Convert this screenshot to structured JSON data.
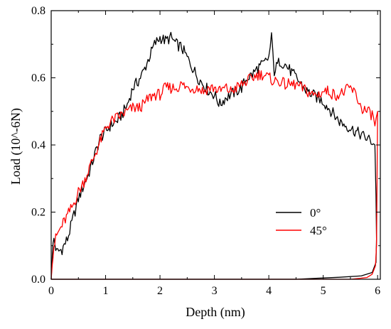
{
  "chart_data": {
    "type": "line",
    "xlabel": "Depth  (nm)",
    "ylabel": "Load  (10^-6N)",
    "xlim": [
      0,
      6.05
    ],
    "ylim": [
      0,
      0.8
    ],
    "x_ticks": [
      "0",
      "1",
      "2",
      "3",
      "4",
      "5",
      "6"
    ],
    "y_ticks": [
      "0.0",
      "0.2",
      "0.4",
      "0.6",
      "0.8"
    ],
    "legend_position": "lower-right",
    "series": [
      {
        "name": "0°",
        "color": "#000000",
        "loading": [
          [
            0.0,
            0.0
          ],
          [
            0.02,
            0.08
          ],
          [
            0.05,
            0.12
          ],
          [
            0.1,
            0.08
          ],
          [
            0.2,
            0.09
          ],
          [
            0.3,
            0.12
          ],
          [
            0.4,
            0.18
          ],
          [
            0.5,
            0.24
          ],
          [
            0.6,
            0.28
          ],
          [
            0.7,
            0.32
          ],
          [
            0.8,
            0.37
          ],
          [
            0.9,
            0.42
          ],
          [
            1.0,
            0.44
          ],
          [
            1.1,
            0.46
          ],
          [
            1.2,
            0.47
          ],
          [
            1.3,
            0.49
          ],
          [
            1.4,
            0.52
          ],
          [
            1.5,
            0.57
          ],
          [
            1.6,
            0.59
          ],
          [
            1.7,
            0.62
          ],
          [
            1.8,
            0.66
          ],
          [
            1.9,
            0.7
          ],
          [
            2.0,
            0.72
          ],
          [
            2.1,
            0.71
          ],
          [
            2.2,
            0.72
          ],
          [
            2.3,
            0.7
          ],
          [
            2.4,
            0.69
          ],
          [
            2.5,
            0.66
          ],
          [
            2.6,
            0.63
          ],
          [
            2.7,
            0.6
          ],
          [
            2.8,
            0.58
          ],
          [
            2.9,
            0.56
          ],
          [
            3.0,
            0.55
          ],
          [
            3.1,
            0.52
          ],
          [
            3.2,
            0.54
          ],
          [
            3.3,
            0.55
          ],
          [
            3.4,
            0.56
          ],
          [
            3.5,
            0.57
          ],
          [
            3.6,
            0.6
          ],
          [
            3.7,
            0.61
          ],
          [
            3.8,
            0.63
          ],
          [
            3.9,
            0.64
          ],
          [
            4.0,
            0.66
          ],
          [
            4.05,
            0.72
          ],
          [
            4.1,
            0.62
          ],
          [
            4.2,
            0.65
          ],
          [
            4.3,
            0.64
          ],
          [
            4.4,
            0.62
          ],
          [
            4.5,
            0.6
          ],
          [
            4.6,
            0.58
          ],
          [
            4.7,
            0.56
          ],
          [
            4.8,
            0.55
          ],
          [
            4.9,
            0.54
          ],
          [
            5.0,
            0.53
          ],
          [
            5.1,
            0.51
          ],
          [
            5.2,
            0.49
          ],
          [
            5.3,
            0.47
          ],
          [
            5.4,
            0.46
          ],
          [
            5.5,
            0.45
          ],
          [
            5.6,
            0.44
          ],
          [
            5.7,
            0.43
          ],
          [
            5.8,
            0.42
          ],
          [
            5.9,
            0.41
          ],
          [
            5.95,
            0.4
          ]
        ],
        "unloading": [
          [
            5.95,
            0.4
          ],
          [
            5.97,
            0.25
          ],
          [
            5.98,
            0.12
          ],
          [
            5.97,
            0.05
          ],
          [
            5.9,
            0.02
          ],
          [
            5.7,
            0.01
          ],
          [
            5.3,
            0.006
          ],
          [
            4.9,
            0.003
          ],
          [
            4.5,
            0.0
          ],
          [
            3.0,
            0.0
          ],
          [
            0.0,
            0.0
          ]
        ]
      },
      {
        "name": "45°",
        "color": "#ff0000",
        "loading": [
          [
            0.0,
            0.0
          ],
          [
            0.02,
            0.06
          ],
          [
            0.05,
            0.1
          ],
          [
            0.1,
            0.13
          ],
          [
            0.2,
            0.16
          ],
          [
            0.3,
            0.19
          ],
          [
            0.4,
            0.22
          ],
          [
            0.5,
            0.26
          ],
          [
            0.6,
            0.29
          ],
          [
            0.7,
            0.33
          ],
          [
            0.8,
            0.37
          ],
          [
            0.9,
            0.41
          ],
          [
            1.0,
            0.45
          ],
          [
            1.1,
            0.47
          ],
          [
            1.2,
            0.48
          ],
          [
            1.3,
            0.49
          ],
          [
            1.4,
            0.5
          ],
          [
            1.5,
            0.51
          ],
          [
            1.6,
            0.51
          ],
          [
            1.7,
            0.52
          ],
          [
            1.8,
            0.54
          ],
          [
            1.9,
            0.55
          ],
          [
            2.0,
            0.55
          ],
          [
            2.1,
            0.57
          ],
          [
            2.2,
            0.57
          ],
          [
            2.3,
            0.57
          ],
          [
            2.4,
            0.58
          ],
          [
            2.5,
            0.57
          ],
          [
            2.6,
            0.57
          ],
          [
            2.7,
            0.57
          ],
          [
            2.8,
            0.56
          ],
          [
            2.9,
            0.57
          ],
          [
            3.0,
            0.57
          ],
          [
            3.1,
            0.56
          ],
          [
            3.2,
            0.57
          ],
          [
            3.3,
            0.56
          ],
          [
            3.4,
            0.57
          ],
          [
            3.5,
            0.58
          ],
          [
            3.6,
            0.59
          ],
          [
            3.7,
            0.6
          ],
          [
            3.8,
            0.61
          ],
          [
            3.9,
            0.61
          ],
          [
            4.0,
            0.6
          ],
          [
            4.1,
            0.59
          ],
          [
            4.2,
            0.59
          ],
          [
            4.3,
            0.58
          ],
          [
            4.4,
            0.58
          ],
          [
            4.5,
            0.58
          ],
          [
            4.6,
            0.57
          ],
          [
            4.7,
            0.56
          ],
          [
            4.8,
            0.55
          ],
          [
            4.9,
            0.55
          ],
          [
            5.0,
            0.56
          ],
          [
            5.1,
            0.56
          ],
          [
            5.2,
            0.55
          ],
          [
            5.3,
            0.55
          ],
          [
            5.4,
            0.56
          ],
          [
            5.5,
            0.57
          ],
          [
            5.6,
            0.55
          ],
          [
            5.7,
            0.51
          ],
          [
            5.8,
            0.5
          ],
          [
            5.9,
            0.49
          ],
          [
            5.95,
            0.46
          ],
          [
            6.0,
            0.5
          ]
        ],
        "unloading": [
          [
            6.0,
            0.5
          ],
          [
            5.99,
            0.3
          ],
          [
            5.98,
            0.1
          ],
          [
            5.96,
            0.04
          ],
          [
            5.9,
            0.015
          ],
          [
            5.8,
            0.005
          ],
          [
            5.5,
            0.0
          ],
          [
            3.0,
            0.0
          ],
          [
            0.0,
            0.0
          ]
        ]
      }
    ]
  }
}
